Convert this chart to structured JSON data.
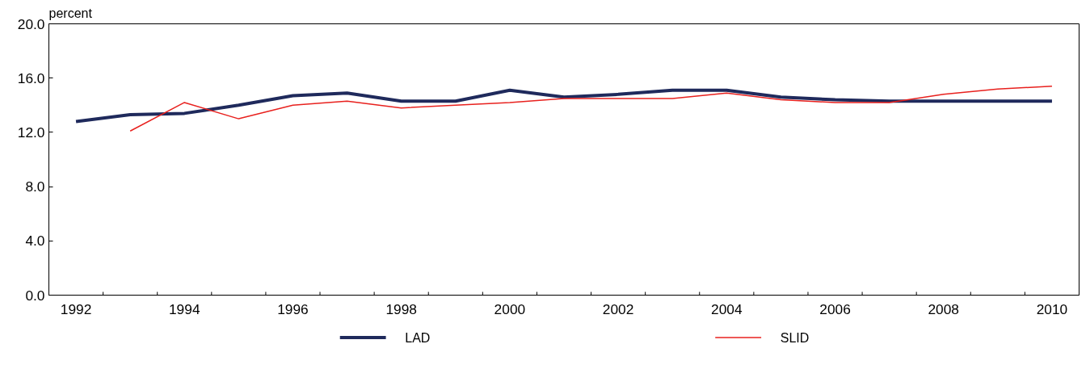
{
  "chart_data": {
    "type": "line",
    "ylabel": "percent",
    "categories": [
      "1992",
      null,
      "1994",
      null,
      "1996",
      null,
      "1998",
      null,
      "2000",
      null,
      "2002",
      null,
      "2004",
      null,
      "2006",
      null,
      "2008",
      null,
      "2010"
    ],
    "series": [
      {
        "name": "LAD",
        "color": "#1f2a5c",
        "values": [
          12.8,
          13.3,
          13.4,
          14.0,
          14.7,
          14.9,
          14.3,
          14.3,
          15.1,
          14.6,
          14.8,
          15.1,
          15.1,
          14.6,
          14.4,
          14.3,
          14.3,
          14.3,
          14.3
        ]
      },
      {
        "name": "SLID",
        "color": "#e8211e",
        "values": [
          null,
          12.1,
          14.2,
          13.0,
          14.0,
          14.3,
          13.8,
          14.0,
          14.2,
          14.5,
          14.5,
          14.5,
          14.9,
          14.4,
          14.2,
          14.2,
          14.8,
          15.2,
          15.4
        ]
      }
    ],
    "ylim": [
      0,
      20
    ],
    "yticks": [
      {
        "value": 0,
        "label": "0.0"
      },
      {
        "value": 4,
        "label": "4.0"
      },
      {
        "value": 8,
        "label": "8.0"
      },
      {
        "value": 12,
        "label": "12.0"
      },
      {
        "value": 16,
        "label": "16.0"
      },
      {
        "value": 20,
        "label": "20.0"
      }
    ],
    "grid": false,
    "legend": "bottom",
    "marker": "none",
    "line_style": "solid"
  }
}
